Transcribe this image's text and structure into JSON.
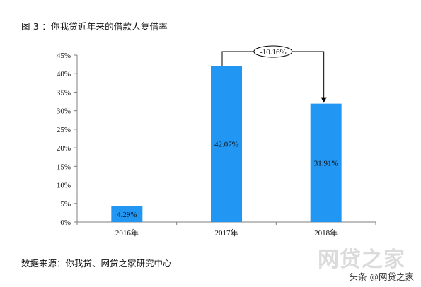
{
  "title": "图 3 ：你我贷近年来的借款人复借率",
  "source": "数据来源：你我贷、网贷之家研究中心",
  "watermark": {
    "main": "网贷之家",
    "sub": "头条 @网贷之家"
  },
  "colors": {
    "bar": "#2196F3",
    "axis": "#7f7f7f",
    "text": "#111111"
  },
  "chart_data": {
    "type": "bar",
    "categories": [
      "2016年",
      "2017年",
      "2018年"
    ],
    "values": [
      4.29,
      42.07,
      31.91
    ],
    "value_labels": [
      "4.29%",
      "42.07%",
      "31.91%"
    ],
    "unit": "%",
    "ylim": [
      0,
      45
    ],
    "yticks": [
      0,
      5,
      10,
      15,
      20,
      25,
      30,
      35,
      40,
      45
    ],
    "ytick_labels": [
      "0%",
      "5%",
      "10%",
      "15%",
      "20%",
      "25%",
      "30%",
      "35%",
      "40%",
      "45%"
    ],
    "xlabel": "",
    "ylabel": "",
    "grid": false,
    "legend": "none",
    "annotation": {
      "from": "2017年",
      "to": "2018年",
      "label": "-10.16%"
    }
  }
}
